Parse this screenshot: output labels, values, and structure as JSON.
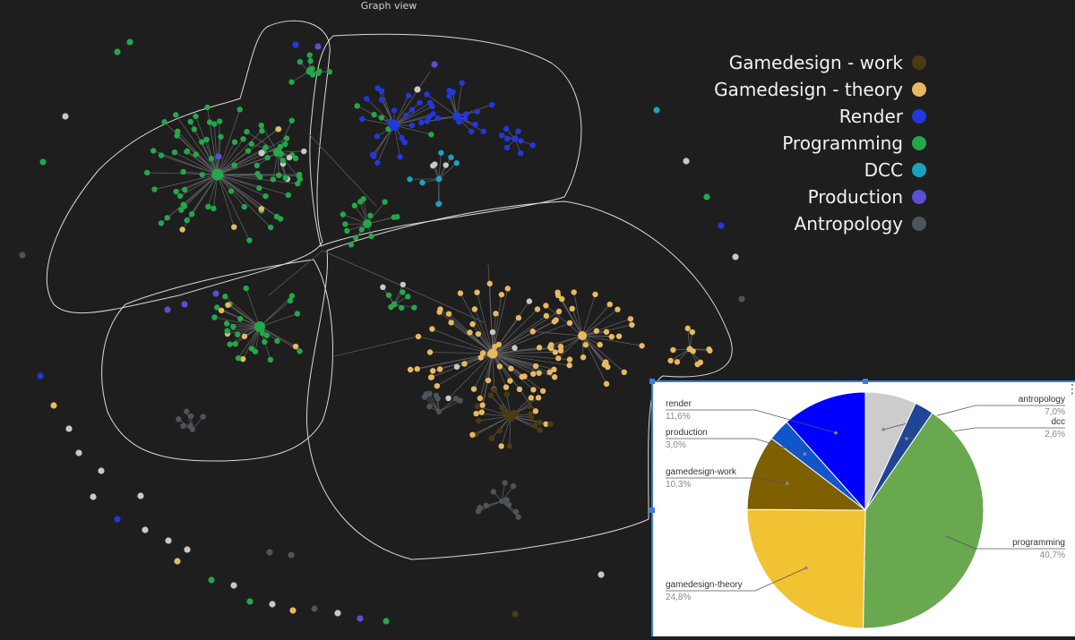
{
  "window": {
    "title": "Graph view"
  },
  "legend": [
    {
      "label": "Gamedesign - work",
      "color": "#4a3b12",
      "icon": "dot"
    },
    {
      "label": "Gamedesign - theory",
      "color": "#e8b861",
      "icon": "dot"
    },
    {
      "label": "Render",
      "color": "#2337e0",
      "icon": "dot"
    },
    {
      "label": "Programming",
      "color": "#22a84a",
      "icon": "dot"
    },
    {
      "label": "DCC",
      "color": "#1aa2bf",
      "icon": "dot"
    },
    {
      "label": "Production",
      "color": "#5b4fd6",
      "icon": "dot"
    },
    {
      "label": "Antropology",
      "color": "#4d545c",
      "icon": "dot"
    }
  ],
  "graph": {
    "clusters": [
      "Programming",
      "Render",
      "Gamedesign - theory",
      "Gamedesign - work"
    ],
    "node_colors": {
      "programming": "#22a84a",
      "render": "#2337e0",
      "gamedesign_theory": "#e8b861",
      "gamedesign_work": "#4a3b12",
      "dcc": "#1aa2bf",
      "production": "#5b4fd6",
      "antropology": "#4d545c",
      "light": "#c8c8c8"
    }
  },
  "chart_data": {
    "type": "pie",
    "slices": [
      {
        "name": "antropology",
        "percent": 7.0,
        "label": "7,0%",
        "color": "#cccccc"
      },
      {
        "name": "dcc",
        "percent": 2.6,
        "label": "2,6%",
        "color": "#1f4596"
      },
      {
        "name": "programming",
        "percent": 40.7,
        "label": "40,7%",
        "color": "#6aa84f"
      },
      {
        "name": "gamedesign-theory",
        "percent": 24.8,
        "label": "24,8%",
        "color": "#f1c232"
      },
      {
        "name": "gamedesign-work",
        "percent": 10.3,
        "label": "10,3%",
        "color": "#7f6000"
      },
      {
        "name": "production",
        "percent": 3.0,
        "label": "3,0%",
        "color": "#1155cc"
      },
      {
        "name": "render",
        "percent": 11.6,
        "label": "11,6%",
        "color": "#0000ff"
      }
    ],
    "start": "12 o'clock, clockwise"
  }
}
